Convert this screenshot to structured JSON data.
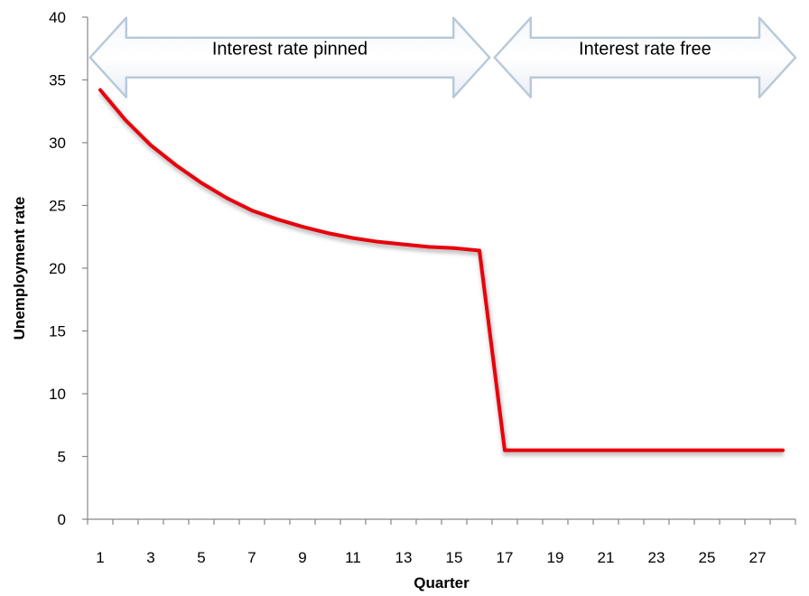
{
  "chart_data": {
    "type": "line",
    "title": "",
    "xlabel": "Quarter",
    "ylabel": "Unemployment rate",
    "x_tick_labels": [
      "1",
      "3",
      "5",
      "7",
      "9",
      "11",
      "13",
      "15",
      "17",
      "19",
      "21",
      "23",
      "25",
      "27"
    ],
    "y_tick_labels": [
      "0",
      "5",
      "10",
      "15",
      "20",
      "25",
      "30",
      "35",
      "40"
    ],
    "xlim": [
      0.5,
      28.5
    ],
    "ylim": [
      0,
      40
    ],
    "grid": false,
    "legend": "none",
    "series": [
      {
        "color": "#e8000b",
        "x": [
          1,
          2,
          3,
          4,
          5,
          6,
          7,
          8,
          9,
          10,
          11,
          12,
          13,
          14,
          15,
          16,
          17,
          18,
          19,
          20,
          21,
          22,
          23,
          24,
          25,
          26,
          27,
          28
        ],
        "y": [
          34.2,
          31.8,
          29.8,
          28.2,
          26.8,
          25.6,
          24.6,
          23.9,
          23.3,
          22.8,
          22.4,
          22.1,
          21.9,
          21.7,
          21.6,
          21.4,
          5.5,
          5.5,
          5.5,
          5.5,
          5.5,
          5.5,
          5.5,
          5.5,
          5.5,
          5.5,
          5.5,
          5.5
        ]
      }
    ],
    "annotations": [
      {
        "text": "Interest rate pinned",
        "x_start": 0.6,
        "x_end": 16.4,
        "y": 37
      },
      {
        "text": "Interest rate free",
        "x_start": 16.6,
        "x_end": 28.5,
        "y": 37
      }
    ]
  }
}
